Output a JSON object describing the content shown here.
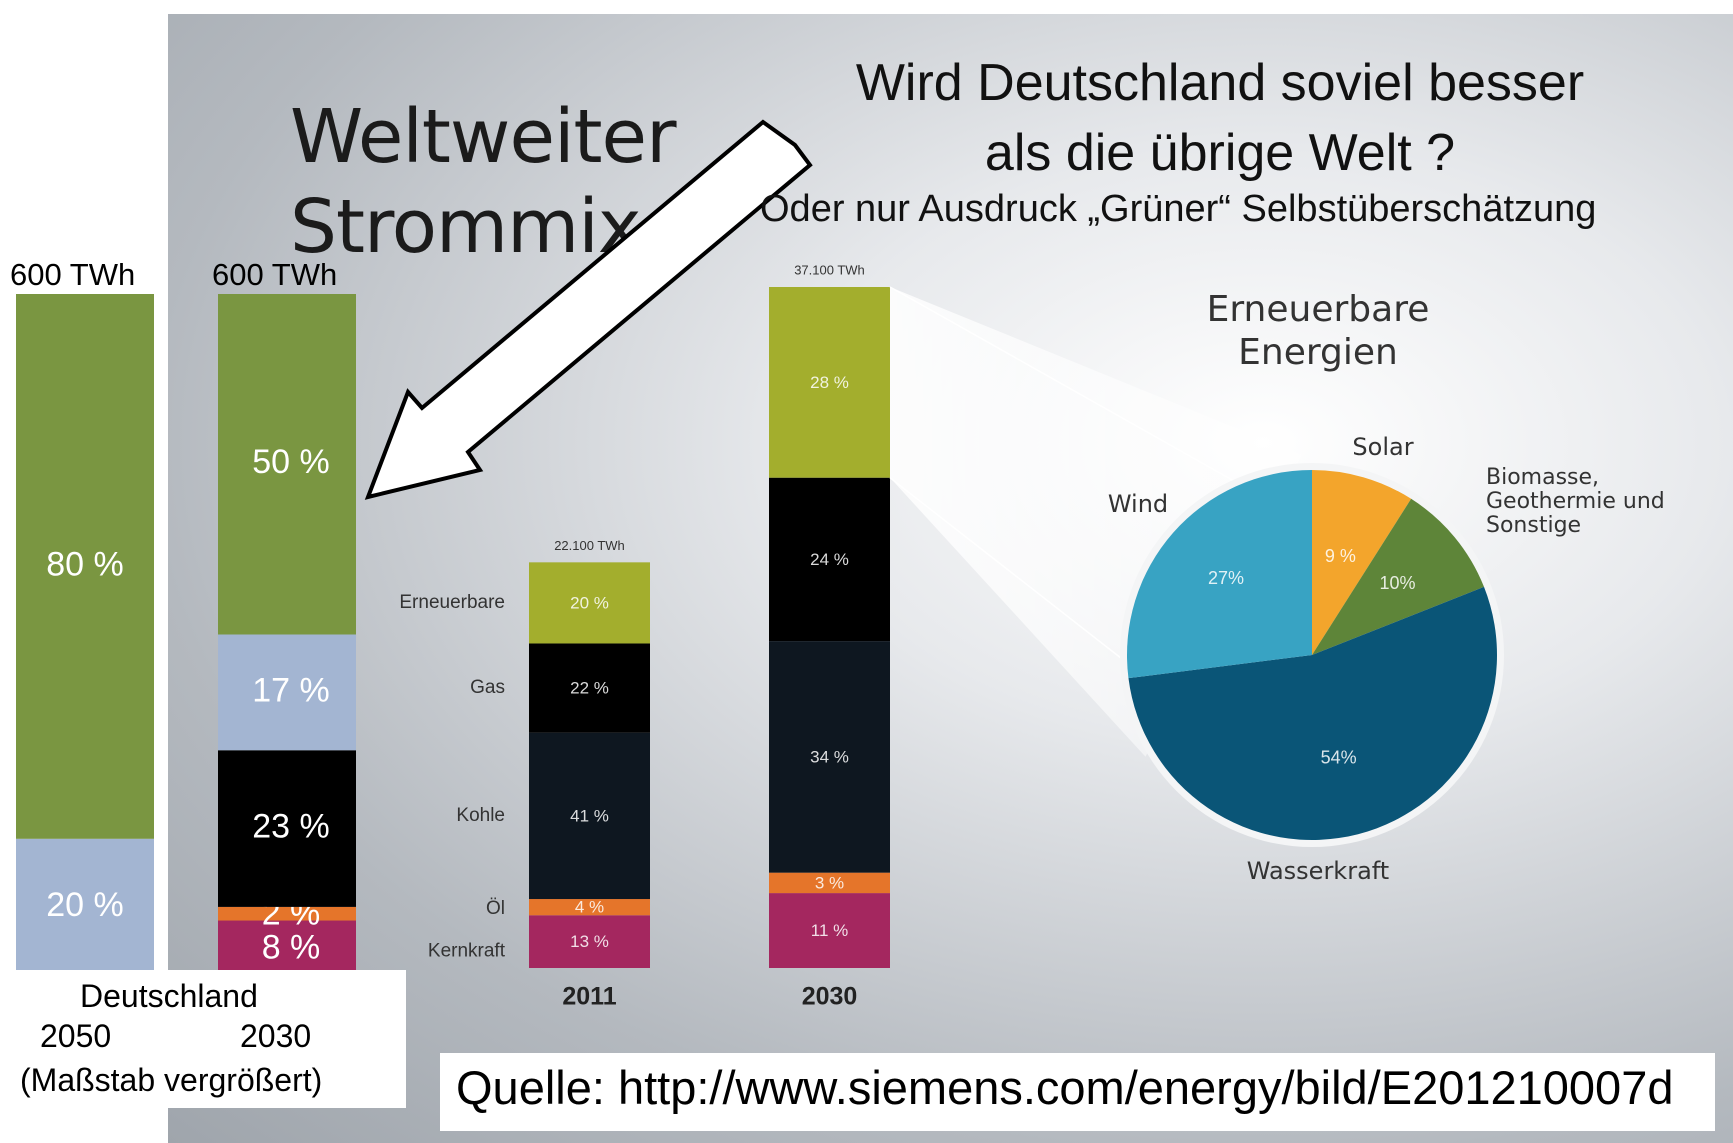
{
  "title": "Weltweiter Strommix",
  "question": {
    "line1": "Wird Deutschland soviel besser",
    "line2": "als die übrige Welt ?",
    "line3": "Oder nur Ausdruck „Grüner“ Selbstüberschätzung"
  },
  "germany": {
    "label": "Deutschland",
    "year_2050": "2050",
    "year_2030": "2030",
    "note": "(Maßstab vergrößert)",
    "twh_2050": "600 TWh",
    "twh_2030": "600 TWh"
  },
  "source": "Quelle: http://www.siemens.com/energy/bild/E201210007d",
  "colors": {
    "erneuerbare_world": "#a3ae2d",
    "erneuerbare_de": "#7a9641",
    "gas_world": "#5f7383",
    "gas_de": "#a3b5d2",
    "kohle": "#0e1720",
    "kohle_de": "#000000",
    "oel": "#e5752a",
    "kernkraft": "#a4275f",
    "pie_wind": "#38a3c3",
    "pie_solar": "#f3a52c",
    "pie_biomasse": "#5e8539",
    "pie_wasser": "#0a5577"
  },
  "chart_data": [
    {
      "type": "bar",
      "stacked": true,
      "name_label": "Deutschland",
      "categories": [
        "2050",
        "2030"
      ],
      "totals": [
        "600 TWh",
        "600 TWh"
      ],
      "series": [
        {
          "key": "kernkraft",
          "values": [
            0,
            8
          ],
          "labels": [
            "",
            "8 %"
          ]
        },
        {
          "key": "oel",
          "values": [
            0,
            2
          ],
          "labels": [
            "",
            "2 %"
          ]
        },
        {
          "key": "kohle",
          "values": [
            0,
            23
          ],
          "labels": [
            "",
            "23 %"
          ]
        },
        {
          "key": "gas",
          "values": [
            20,
            17
          ],
          "labels": [
            "20 %",
            "17 %"
          ]
        },
        {
          "key": "erneuerbare",
          "values": [
            80,
            50
          ],
          "labels": [
            "80 %",
            "50 %"
          ]
        }
      ]
    },
    {
      "type": "bar",
      "stacked": true,
      "categories": [
        "2011",
        "2030"
      ],
      "totals": [
        "22.100 TWh",
        "37.100 TWh"
      ],
      "total_values_twh": [
        22100,
        37100
      ],
      "series": [
        {
          "name": "Kernkraft",
          "values": [
            13,
            11
          ],
          "labels": [
            "13 %",
            "11 %"
          ]
        },
        {
          "name": "Öl",
          "values": [
            4,
            3
          ],
          "labels": [
            "4 %",
            "3 %"
          ]
        },
        {
          "name": "Kohle",
          "values": [
            41,
            34
          ],
          "labels": [
            "41 %",
            "34 %"
          ]
        },
        {
          "name": "Gas",
          "values": [
            22,
            24
          ],
          "labels": [
            "22 %",
            "24 %"
          ]
        },
        {
          "name": "Erneuerbare",
          "values": [
            20,
            28
          ],
          "labels": [
            "20 %",
            "28 %"
          ]
        }
      ]
    },
    {
      "type": "pie",
      "title": "Erneuerbare Energien",
      "title_line1": "Erneuerbare",
      "title_line2": "Energien",
      "slices": [
        {
          "name": "Solar",
          "value": 9,
          "label": "9 %"
        },
        {
          "name_lines": [
            "Biomasse,",
            "Geothermie und",
            "Sonstige"
          ],
          "value": 10,
          "label": "10%"
        },
        {
          "name": "Wasserkraft",
          "value": 54,
          "label": "54%"
        },
        {
          "name": "Wind",
          "value": 27,
          "label": "27%"
        }
      ]
    }
  ]
}
